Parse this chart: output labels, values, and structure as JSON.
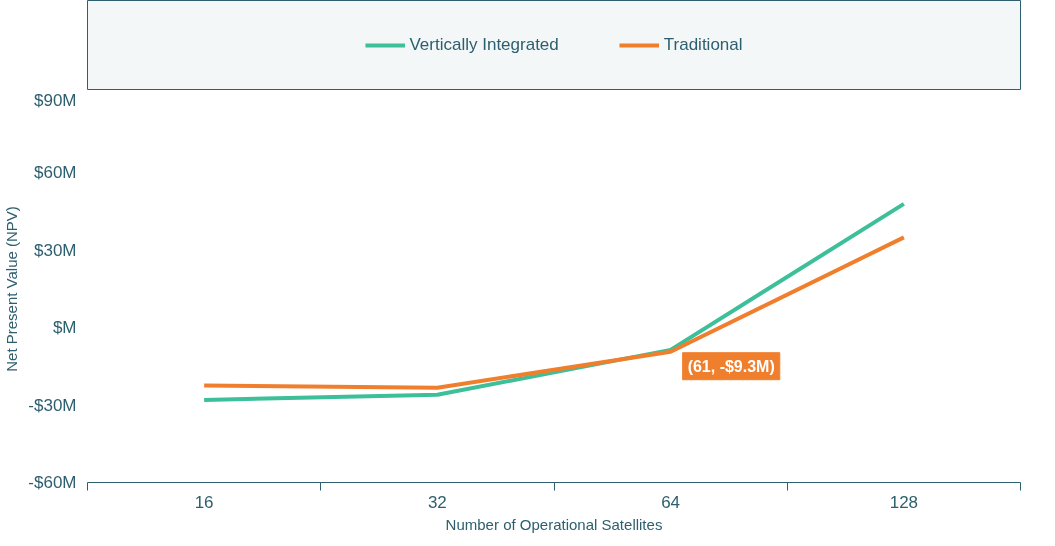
{
  "chart_data": {
    "type": "line",
    "xlabel": "Number of Operational Satellites",
    "ylabel": "Net Present Value (NPV)",
    "categories": [
      "16",
      "32",
      "64",
      "128"
    ],
    "series": [
      {
        "name": "Vertically Integrated",
        "color": "#3dbf99",
        "values": [
          -28,
          -26,
          -8.6,
          48
        ]
      },
      {
        "name": "Traditional",
        "color": "#f07f2d",
        "values": [
          -22.4,
          -23.3,
          -9.3,
          35
        ]
      }
    ],
    "ylim": [
      -60,
      90
    ],
    "yticks": [
      {
        "value": -60,
        "label": "-$60M"
      },
      {
        "value": -30,
        "label": "-$30M"
      },
      {
        "value": 0,
        "label": "$M"
      },
      {
        "value": 30,
        "label": "$30M"
      },
      {
        "value": 60,
        "label": "$60M"
      },
      {
        "value": 90,
        "label": "$90M"
      }
    ],
    "annotations": [
      {
        "text": "(61, -$9.3M)",
        "x": "64",
        "y": -9.3
      }
    ],
    "grid": false,
    "legend": "top",
    "marker": "none",
    "line_style": "solid"
  }
}
